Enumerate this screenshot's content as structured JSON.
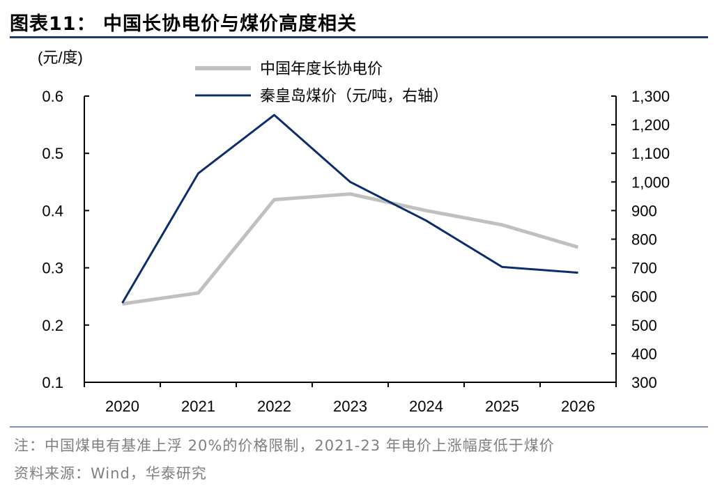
{
  "figure": {
    "title": "图表11：  中国长协电价与煤价高度相关",
    "note": "注：中国煤电有基准上浮 20%的价格限制，2021-23 年电价上涨幅度低于煤价",
    "source": "资料来源：Wind，华泰研究"
  },
  "chart_data": {
    "type": "line",
    "left_unit": "(元/度)",
    "x": [
      "2020",
      "2021",
      "2022",
      "2023",
      "2024",
      "2025",
      "2026"
    ],
    "series": [
      {
        "name": "中国年度长协电价",
        "axis": "left",
        "color": "#c0c0c0",
        "values": [
          0.237,
          0.256,
          0.419,
          0.429,
          0.4,
          0.375,
          0.336
        ]
      },
      {
        "name": "秦皇岛煤价（元/吨，右轴）",
        "axis": "right",
        "color": "#0c2d6b",
        "values": [
          577,
          1030,
          1234,
          1000,
          865,
          703,
          683
        ]
      }
    ],
    "y_left": {
      "min": 0.1,
      "max": 0.6,
      "ticks": [
        "0.6",
        "0.5",
        "0.4",
        "0.3",
        "0.2",
        "0.1"
      ]
    },
    "y_right": {
      "min": 300,
      "max": 1300,
      "ticks": [
        "1,300",
        "1,200",
        "1,100",
        "1,000",
        "900",
        "800",
        "700",
        "600",
        "500",
        "400",
        "300"
      ]
    },
    "legend_position": "top-center",
    "grid": false
  }
}
